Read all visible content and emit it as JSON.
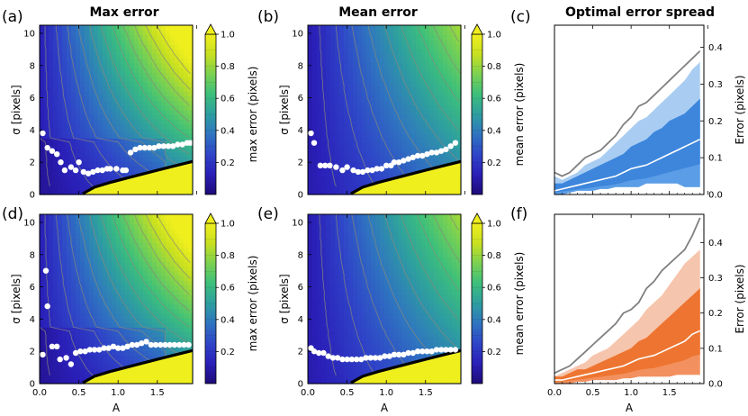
{
  "figure": {
    "titles": {
      "a": "Max error",
      "b": "Mean error",
      "c": "Optimal error spread"
    },
    "panel_labels": [
      "(a)",
      "(b)",
      "(c)",
      "(d)",
      "(e)",
      "(f)"
    ],
    "colormap": [
      "#1e0a78",
      "#2a1fb8",
      "#2f45c8",
      "#2f74c0",
      "#2e9ea0",
      "#3cbf7c",
      "#7ad151",
      "#c8e020",
      "#f0ef1e"
    ],
    "spread_colors": {
      "c": {
        "outer": "#a9cdf2",
        "mid": "#5b9de6",
        "inner": "#3d86dc",
        "median": "#ffffff",
        "max": "#808080"
      },
      "f": {
        "outer": "#f6c5ad",
        "mid": "#f2915f",
        "inner": "#ee7531",
        "median": "#ffffff",
        "max": "#808080"
      }
    }
  },
  "chart_data": [
    {
      "panel": "a",
      "type": "heatmap",
      "title": "Max error",
      "xlabel": "",
      "ylabel": "σ [pixels]",
      "xlim": [
        0,
        1.95
      ],
      "ylim": [
        0,
        10.5
      ],
      "xticks": [
        "",
        "",
        "",
        "",
        ""
      ],
      "yticks": [
        "0",
        "2",
        "4",
        "6",
        "8",
        "10"
      ],
      "colorbar": {
        "label": "max error (pixels)",
        "range": [
          0,
          1.0
        ],
        "ticks": [
          "0.2",
          "0.4",
          "0.6",
          "0.8",
          "1.0"
        ],
        "extend": "max"
      },
      "colorbar_vmax": 1.0,
      "boundary_x": [
        0.55,
        0.7,
        0.9,
        1.1,
        1.3,
        1.5,
        1.7,
        1.95
      ],
      "boundary_y": [
        0.05,
        0.45,
        0.75,
        1.0,
        1.25,
        1.5,
        1.75,
        2.05
      ],
      "optimal_points": {
        "x": [
          0.04,
          0.1,
          0.16,
          0.22,
          0.27,
          0.32,
          0.4,
          0.46,
          0.5,
          0.56,
          0.62,
          0.68,
          0.74,
          0.8,
          0.86,
          0.9,
          0.98,
          1.06,
          1.1,
          1.16,
          1.22,
          1.28,
          1.34,
          1.4,
          1.46,
          1.52,
          1.58,
          1.64,
          1.7,
          1.76,
          1.82,
          1.88,
          1.92
        ],
        "y": [
          3.8,
          2.9,
          2.7,
          2.5,
          2.0,
          1.5,
          1.7,
          1.5,
          2.0,
          1.4,
          1.3,
          1.4,
          1.5,
          1.5,
          1.6,
          1.6,
          1.6,
          1.5,
          1.5,
          2.6,
          2.8,
          2.9,
          2.9,
          2.9,
          2.9,
          3.0,
          3.0,
          3.0,
          3.0,
          3.1,
          3.1,
          3.2,
          3.2
        ]
      }
    },
    {
      "panel": "b",
      "type": "heatmap",
      "title": "Mean error",
      "xlabel": "",
      "ylabel": "σ [pixels]",
      "xlim": [
        0,
        1.95
      ],
      "ylim": [
        0,
        10.5
      ],
      "xticks": [
        "",
        "",
        "",
        "",
        ""
      ],
      "yticks": [
        "0",
        "2",
        "4",
        "6",
        "8",
        "10"
      ],
      "colorbar": {
        "label": "mean error (pixels)",
        "range": [
          0,
          1.0
        ],
        "ticks": [
          "0.2",
          "0.4",
          "0.6",
          "0.8",
          "1.0"
        ],
        "extend": "max"
      },
      "colorbar_vmax": 0.35,
      "boundary_x": [
        0.55,
        0.7,
        0.9,
        1.1,
        1.3,
        1.5,
        1.7,
        1.95
      ],
      "boundary_y": [
        0.05,
        0.45,
        0.75,
        1.0,
        1.25,
        1.5,
        1.75,
        2.05
      ],
      "optimal_points": {
        "x": [
          0.04,
          0.08,
          0.16,
          0.22,
          0.28,
          0.36,
          0.44,
          0.5,
          0.58,
          0.64,
          0.7,
          0.76,
          0.82,
          0.88,
          0.94,
          1.0,
          1.06,
          1.1,
          1.16,
          1.22,
          1.28,
          1.34,
          1.4,
          1.46,
          1.52,
          1.58,
          1.64,
          1.7,
          1.76,
          1.82,
          1.88
        ],
        "y": [
          3.8,
          3.2,
          1.8,
          1.8,
          1.8,
          1.7,
          1.5,
          1.7,
          1.5,
          1.4,
          1.4,
          1.5,
          1.5,
          1.6,
          1.6,
          1.8,
          1.8,
          2.0,
          2.0,
          2.1,
          2.2,
          2.3,
          2.4,
          2.4,
          2.5,
          2.6,
          2.6,
          2.7,
          2.8,
          3.0,
          3.2
        ]
      }
    },
    {
      "panel": "c",
      "type": "area",
      "title": "Optimal error spread",
      "xlabel": "",
      "ylabel": "Error (pixels)",
      "xlim": [
        0,
        1.95
      ],
      "ylim": [
        0,
        0.46
      ],
      "xticks": [
        "",
        "",
        "",
        "",
        ""
      ],
      "yticks": [
        "0.0",
        "0.1",
        "0.2",
        "0.3",
        "0.4"
      ],
      "x": [
        0.0,
        0.1,
        0.2,
        0.3,
        0.4,
        0.5,
        0.6,
        0.7,
        0.8,
        0.9,
        1.0,
        1.1,
        1.2,
        1.3,
        1.4,
        1.5,
        1.6,
        1.7,
        1.8,
        1.9
      ],
      "series": [
        {
          "values": [
            0.06,
            0.05,
            0.06,
            0.08,
            0.1,
            0.11,
            0.12,
            0.14,
            0.16,
            0.19,
            0.21,
            0.24,
            0.25,
            0.27,
            0.29,
            0.31,
            0.33,
            0.35,
            0.37,
            0.39
          ]
        },
        {
          "values": [
            0.05,
            0.04,
            0.05,
            0.06,
            0.08,
            0.09,
            0.1,
            0.12,
            0.14,
            0.16,
            0.18,
            0.2,
            0.21,
            0.23,
            0.25,
            0.27,
            0.29,
            0.31,
            0.34,
            0.36
          ]
        },
        {
          "values": [
            0.03,
            0.03,
            0.04,
            0.05,
            0.06,
            0.07,
            0.08,
            0.09,
            0.1,
            0.11,
            0.13,
            0.14,
            0.15,
            0.17,
            0.18,
            0.2,
            0.21,
            0.22,
            0.24,
            0.26
          ]
        },
        {
          "values": [
            0.01,
            0.015,
            0.02,
            0.025,
            0.03,
            0.035,
            0.04,
            0.045,
            0.05,
            0.06,
            0.07,
            0.075,
            0.08,
            0.09,
            0.1,
            0.11,
            0.12,
            0.13,
            0.14,
            0.15
          ]
        },
        {
          "values": [
            0.0,
            0.0,
            0.005,
            0.01,
            0.01,
            0.01,
            0.015,
            0.015,
            0.02,
            0.02,
            0.02,
            0.02,
            0.03,
            0.03,
            0.03,
            0.03,
            0.03,
            0.02,
            0.02,
            0.02
          ]
        }
      ]
    },
    {
      "panel": "d",
      "type": "heatmap",
      "title": "",
      "xlabel": "A",
      "ylabel": "σ [pixels]",
      "xlim": [
        0,
        1.95
      ],
      "ylim": [
        0,
        10.5
      ],
      "xticks": [
        "0.0",
        "0.5",
        "1.0",
        "1.5"
      ],
      "yticks": [
        "0",
        "2",
        "4",
        "6",
        "8",
        "10"
      ],
      "colorbar": {
        "label": "max error (pixels)",
        "range": [
          0,
          1.0
        ],
        "ticks": [
          "0.2",
          "0.4",
          "0.6",
          "0.8",
          "1.0"
        ],
        "extend": "max"
      },
      "colorbar_vmax": 1.0,
      "boundary_x": [
        0.55,
        0.7,
        0.9,
        1.1,
        1.3,
        1.5,
        1.7,
        1.95
      ],
      "boundary_y": [
        0.05,
        0.45,
        0.75,
        1.0,
        1.25,
        1.5,
        1.75,
        2.05
      ],
      "optimal_points": {
        "x": [
          0.04,
          0.08,
          0.1,
          0.16,
          0.22,
          0.26,
          0.34,
          0.4,
          0.46,
          0.52,
          0.58,
          0.64,
          0.7,
          0.76,
          0.82,
          0.88,
          0.94,
          1.0,
          1.06,
          1.12,
          1.18,
          1.24,
          1.3,
          1.36,
          1.42,
          1.48,
          1.54,
          1.6,
          1.66,
          1.72,
          1.78,
          1.84,
          1.9
        ],
        "y": [
          1.8,
          7.0,
          4.8,
          2.3,
          2.3,
          1.5,
          1.6,
          1.2,
          1.9,
          2.0,
          2.0,
          2.1,
          2.1,
          2.1,
          2.2,
          2.2,
          2.3,
          2.2,
          2.2,
          2.3,
          2.4,
          2.4,
          2.5,
          2.6,
          2.4,
          2.4,
          2.4,
          2.4,
          2.4,
          2.4,
          2.4,
          2.4,
          2.4
        ]
      }
    },
    {
      "panel": "e",
      "type": "heatmap",
      "title": "",
      "xlabel": "A",
      "ylabel": "σ [pixels]",
      "xlim": [
        0,
        1.95
      ],
      "ylim": [
        0,
        10.5
      ],
      "xticks": [
        "0.0",
        "0.5",
        "1.0",
        "1.5"
      ],
      "yticks": [
        "0",
        "2",
        "4",
        "6",
        "8",
        "10"
      ],
      "colorbar": {
        "label": "mean error (pixels)",
        "range": [
          0,
          1.0
        ],
        "ticks": [
          "0.2",
          "0.4",
          "0.6",
          "0.8",
          "1.0"
        ],
        "extend": "max"
      },
      "colorbar_vmax": 0.35,
      "boundary_x": [
        0.55,
        0.7,
        0.9,
        1.1,
        1.3,
        1.5,
        1.7,
        1.95
      ],
      "boundary_y": [
        0.05,
        0.45,
        0.75,
        1.0,
        1.25,
        1.5,
        1.75,
        2.05
      ],
      "optimal_points": {
        "x": [
          0.04,
          0.08,
          0.14,
          0.2,
          0.26,
          0.32,
          0.38,
          0.44,
          0.5,
          0.56,
          0.62,
          0.68,
          0.74,
          0.8,
          0.86,
          0.92,
          0.98,
          1.04,
          1.1,
          1.16,
          1.22,
          1.28,
          1.34,
          1.4,
          1.46,
          1.52,
          1.58,
          1.64,
          1.7,
          1.76,
          1.82,
          1.88
        ],
        "y": [
          2.2,
          2.0,
          1.9,
          1.9,
          1.7,
          1.6,
          1.6,
          1.5,
          1.5,
          1.5,
          1.5,
          1.5,
          1.6,
          1.6,
          1.6,
          1.6,
          1.7,
          1.7,
          1.8,
          1.8,
          1.8,
          1.9,
          1.9,
          2.0,
          2.0,
          2.0,
          2.0,
          2.1,
          2.1,
          2.1,
          2.1,
          2.1
        ]
      }
    },
    {
      "panel": "f",
      "type": "area",
      "title": "",
      "xlabel": "A",
      "ylabel": "Error (pixels)",
      "xlim": [
        0,
        1.95
      ],
      "ylim": [
        0,
        0.48
      ],
      "xticks": [
        "0.0",
        "0.5",
        "1.0",
        "1.5"
      ],
      "yticks": [
        "0.0",
        "0.1",
        "0.2",
        "0.3",
        "0.4"
      ],
      "x": [
        0.0,
        0.1,
        0.2,
        0.3,
        0.4,
        0.5,
        0.6,
        0.7,
        0.8,
        0.9,
        1.0,
        1.1,
        1.2,
        1.3,
        1.4,
        1.5,
        1.6,
        1.7,
        1.8,
        1.9
      ],
      "series": [
        {
          "values": [
            0.03,
            0.04,
            0.05,
            0.07,
            0.09,
            0.11,
            0.13,
            0.15,
            0.17,
            0.2,
            0.21,
            0.23,
            0.27,
            0.29,
            0.32,
            0.34,
            0.36,
            0.38,
            0.42,
            0.47
          ]
        },
        {
          "values": [
            0.02,
            0.03,
            0.04,
            0.05,
            0.06,
            0.08,
            0.09,
            0.1,
            0.12,
            0.14,
            0.16,
            0.18,
            0.21,
            0.23,
            0.25,
            0.28,
            0.31,
            0.34,
            0.36,
            0.38
          ]
        },
        {
          "values": [
            0.02,
            0.02,
            0.03,
            0.04,
            0.04,
            0.05,
            0.06,
            0.07,
            0.08,
            0.09,
            0.1,
            0.12,
            0.13,
            0.15,
            0.17,
            0.19,
            0.21,
            0.23,
            0.25,
            0.27
          ]
        },
        {
          "values": [
            0.01,
            0.01,
            0.015,
            0.02,
            0.025,
            0.03,
            0.035,
            0.04,
            0.045,
            0.05,
            0.06,
            0.07,
            0.075,
            0.08,
            0.09,
            0.1,
            0.11,
            0.12,
            0.14,
            0.15
          ]
        },
        {
          "values": [
            0.0,
            0.0,
            0.0,
            0.005,
            0.005,
            0.01,
            0.01,
            0.01,
            0.01,
            0.015,
            0.015,
            0.02,
            0.02,
            0.02,
            0.02,
            0.02,
            0.025,
            0.025,
            0.025,
            0.025
          ]
        }
      ]
    }
  ]
}
